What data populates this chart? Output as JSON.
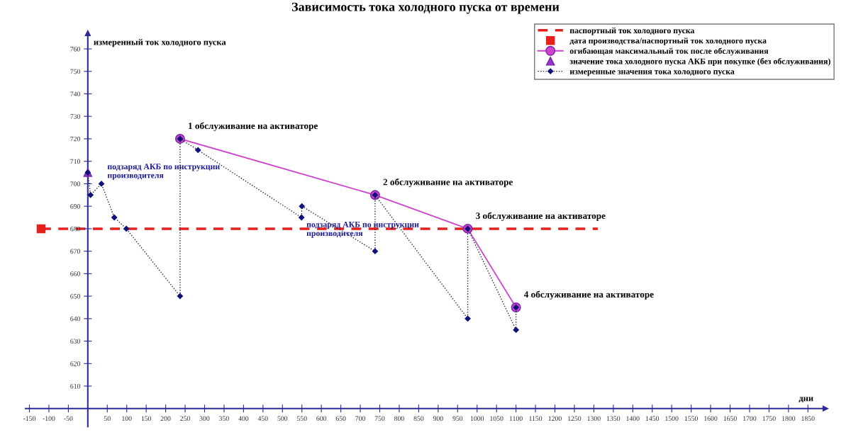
{
  "chart_data": {
    "type": "line",
    "title": "Зависимость тока холодного пуска от времени",
    "xlabel": "дни",
    "ylabel": "измеренный ток холодного пуска",
    "xlim": [
      -160,
      1895
    ],
    "ylim": [
      592,
      767
    ],
    "xticks": [
      -150,
      -100,
      -50,
      50,
      100,
      150,
      200,
      250,
      300,
      350,
      400,
      450,
      500,
      550,
      600,
      650,
      700,
      750,
      800,
      850,
      900,
      950,
      1000,
      1050,
      1100,
      1150,
      1200,
      1250,
      1300,
      1350,
      1400,
      1450,
      1500,
      1550,
      1600,
      1650,
      1700,
      1750,
      1800,
      1850
    ],
    "yticks": [
      610,
      620,
      630,
      640,
      650,
      660,
      670,
      680,
      690,
      700,
      710,
      720,
      730,
      740,
      750,
      760
    ],
    "grid": false,
    "legend": "top right",
    "series": [
      {
        "name": "паспортный ток холодного пуска",
        "type": "line",
        "color": "#e3211c",
        "line_style": "dashed",
        "marker": "none",
        "x": [
          -120,
          1310
        ],
        "values": [
          680,
          680
        ]
      },
      {
        "name": "дата производства/паспортный ток холодного пуска",
        "type": "scatter",
        "color": "#e3211c",
        "marker": "square",
        "x": [
          -120
        ],
        "values": [
          680
        ]
      },
      {
        "name": "огибающая максимальный ток после обслуживания",
        "type": "line",
        "color": "#cc44cc",
        "line_style": "solid",
        "marker": "circle",
        "x": [
          237,
          738,
          976,
          1100
        ],
        "values": [
          720,
          695,
          680,
          645
        ]
      },
      {
        "name": "значение тока холодного пуска АКБ при покупке (без обслуживания)",
        "type": "scatter",
        "color": "#9933cc",
        "marker": "triangle",
        "x": [
          0
        ],
        "values": [
          705
        ]
      },
      {
        "name": "измеренные значения тока холодного пуска",
        "type": "line",
        "color": "#10107a",
        "line_style": "dotted",
        "marker": "diamond",
        "x": [
          0,
          7,
          35,
          68,
          99,
          237,
          237,
          283,
          549,
          550,
          738,
          738,
          976,
          976,
          1100,
          1100
        ],
        "values": [
          705,
          695,
          700,
          685,
          680,
          650,
          720,
          715,
          685,
          690,
          670,
          695,
          640,
          680,
          635,
          645
        ]
      }
    ],
    "annotations": [
      {
        "text": "подзаряд АКБ по инструкции\nпроизводителя",
        "x": 35,
        "y": 700
      },
      {
        "text": "1 обслуживание на активаторе",
        "x": 237,
        "y": 720
      },
      {
        "text": "подзаряд АКБ по инструкции\nпроизводителя",
        "x": 549,
        "y": 685
      },
      {
        "text": "2 обслуживание на активаторе",
        "x": 738,
        "y": 695
      },
      {
        "text": "3 обслуживание на активаторе",
        "x": 976,
        "y": 680
      },
      {
        "text": "4 обслуживание на активаторе",
        "x": 1100,
        "y": 645
      }
    ]
  }
}
